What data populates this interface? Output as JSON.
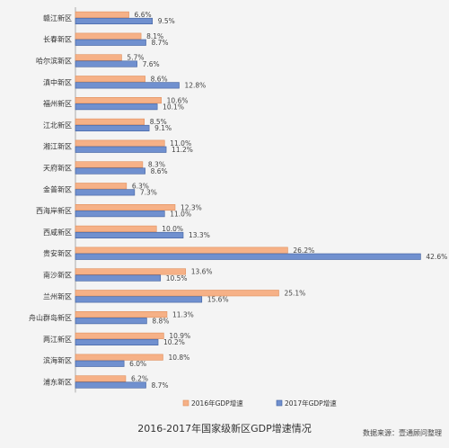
{
  "chart_data": {
    "type": "bar",
    "orientation": "horizontal",
    "title": "2016-2017年国家级新区GDP增速情况",
    "source": "数据来源：壹通顾问整理",
    "categories": [
      "赣江新区",
      "长春新区",
      "哈尔滨新区",
      "滇中新区",
      "福州新区",
      "江北新区",
      "湘江新区",
      "天府新区",
      "金普新区",
      "西海岸新区",
      "西咸新区",
      "贵安新区",
      "南沙新区",
      "兰州新区",
      "舟山群岛新区",
      "两江新区",
      "滨海新区",
      "浦东新区"
    ],
    "series": [
      {
        "name": "2016年GDP增速",
        "color": "#f6b187",
        "values": [
          6.6,
          8.1,
          5.7,
          8.6,
          10.6,
          8.5,
          11.0,
          8.3,
          6.3,
          12.3,
          10.0,
          26.2,
          13.6,
          25.1,
          11.3,
          10.9,
          10.8,
          6.2
        ],
        "labels": [
          "6.6%",
          "8.1%",
          "5.7%",
          "8.6%",
          "10.6%",
          "8.5%",
          "11.0%",
          "8.3%",
          "6.3%",
          "12.3%",
          "10.0%",
          "26.2%",
          "13.6%",
          "25.1%",
          "11.3%",
          "10.9%",
          "10.8%",
          "6.2%"
        ]
      },
      {
        "name": "2017年GDP增速",
        "color": "#7090cf",
        "values": [
          9.5,
          8.7,
          7.6,
          12.8,
          10.1,
          9.1,
          11.2,
          8.6,
          7.3,
          11.0,
          13.3,
          42.6,
          10.5,
          15.6,
          8.8,
          10.2,
          6.0,
          8.7
        ],
        "labels": [
          "9.5%",
          "8.7%",
          "7.6%",
          "12.8%",
          "10.1%",
          "9.1%",
          "11.2%",
          "8.6%",
          "7.3%",
          "11.0%",
          "13.3%",
          "42.6%",
          "10.5%",
          "15.6%",
          "8.8%",
          "10.2%",
          "6.0%",
          "8.7%"
        ]
      }
    ],
    "xlim": [
      0,
      43
    ],
    "grid": false,
    "legend_position": "bottom-right"
  }
}
